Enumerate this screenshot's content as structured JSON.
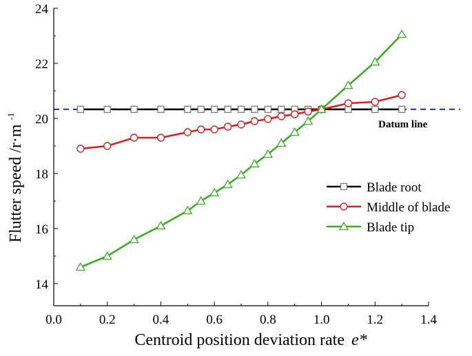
{
  "chart_data": {
    "type": "line",
    "xlabel": "Centroid position deviation rate",
    "xlabel_symbol": "e*",
    "ylabel": "Flutter speed /r·m",
    "ylabel_superscript": "-1",
    "xlim": [
      0.0,
      1.4
    ],
    "ylim": [
      13.2,
      24
    ],
    "x_ticks": [
      0.0,
      0.2,
      0.4,
      0.6,
      0.8,
      1.0,
      1.2,
      1.4
    ],
    "x_tick_labels": [
      "0.0",
      "0.2",
      "0.4",
      "0.6",
      "0.8",
      "1.0",
      "1.2",
      "1.4"
    ],
    "y_ticks": [
      14,
      16,
      18,
      20,
      22,
      24
    ],
    "y_tick_labels": [
      "14",
      "16",
      "18",
      "20",
      "22",
      "24"
    ],
    "grid": false,
    "legend_position": "right",
    "datum_line": {
      "y": 20.33,
      "label": "Datum line",
      "color": "#1f2f8f"
    },
    "series": [
      {
        "name": "Blade root",
        "color": "#000000",
        "marker": "square",
        "x": [
          0.1,
          0.2,
          0.3,
          0.4,
          0.5,
          0.55,
          0.6,
          0.65,
          0.7,
          0.75,
          0.8,
          0.85,
          0.9,
          0.95,
          1.0,
          1.1,
          1.2,
          1.3
        ],
        "y": [
          20.33,
          20.33,
          20.33,
          20.33,
          20.33,
          20.33,
          20.33,
          20.33,
          20.33,
          20.33,
          20.33,
          20.33,
          20.33,
          20.33,
          20.33,
          20.33,
          20.33,
          20.33
        ]
      },
      {
        "name": "Middle of blade",
        "color": "#d62020",
        "marker": "circle",
        "x": [
          0.1,
          0.2,
          0.3,
          0.4,
          0.5,
          0.55,
          0.6,
          0.65,
          0.7,
          0.75,
          0.8,
          0.85,
          0.9,
          0.95,
          1.0,
          1.1,
          1.2,
          1.3
        ],
        "y": [
          18.9,
          19.0,
          19.3,
          19.3,
          19.5,
          19.6,
          19.6,
          19.7,
          19.78,
          19.9,
          19.98,
          20.08,
          20.15,
          20.25,
          20.33,
          20.55,
          20.6,
          20.85
        ]
      },
      {
        "name": "Blade  tip",
        "color": "#33b01a",
        "marker": "triangle",
        "x": [
          0.1,
          0.2,
          0.3,
          0.4,
          0.5,
          0.55,
          0.6,
          0.65,
          0.7,
          0.75,
          0.8,
          0.85,
          0.9,
          0.95,
          1.0,
          1.1,
          1.2,
          1.3
        ],
        "y": [
          14.6,
          15.0,
          15.6,
          16.1,
          16.65,
          17.0,
          17.3,
          17.6,
          17.95,
          18.35,
          18.7,
          19.1,
          19.5,
          19.9,
          20.33,
          21.2,
          22.05,
          23.05
        ]
      }
    ]
  }
}
